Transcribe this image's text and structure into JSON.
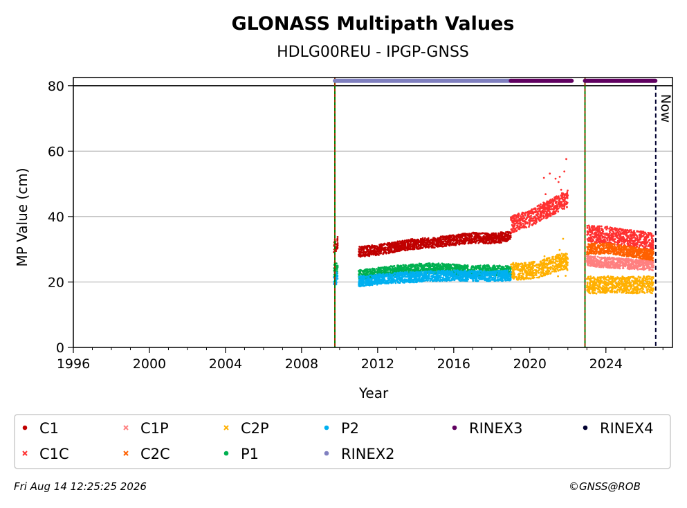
{
  "chart_data": {
    "type": "scatter",
    "title": "GLONASS Multipath Values",
    "subtitle": "HDLG00REU - IPGP-GNSS",
    "xlabel": "Year",
    "ylabel": "MP Value (cm)",
    "xlim": [
      1996,
      2027.5
    ],
    "ylim": [
      0,
      82.5
    ],
    "x_ticks": [
      1996,
      2000,
      2004,
      2008,
      2012,
      2016,
      2020,
      2024
    ],
    "y_ticks": [
      0,
      20,
      40,
      60,
      80
    ],
    "grid": "horizontal",
    "legend_position": "bottom",
    "now_label": "Now",
    "now_x": 2026.62,
    "receiver_change_lines": [
      2009.75,
      2022.9
    ],
    "series": [
      {
        "name": "C1",
        "color": "#c00000",
        "marker": "circle",
        "segments": [
          {
            "x": [
              2009.7,
              2009.75,
              2009.8,
              2009.85,
              2009.9
            ],
            "y": [
              30.5,
              32,
              31,
              30,
              32.5
            ]
          },
          {
            "x": [
              2011,
              2012,
              2013,
              2014,
              2015,
              2016,
              2017,
              2018,
              2019
            ],
            "y": [
              29.2,
              29.8,
              30.8,
              31.7,
              32.1,
              32.8,
              33.5,
              33.3,
              33.9
            ]
          }
        ]
      },
      {
        "name": "C1C",
        "color": "#ff3030",
        "marker": "x",
        "segments": [
          {
            "x": [
              2019,
              2019.5,
              2020,
              2020.5,
              2021,
              2021.5,
              2022
            ],
            "y": [
              37.5,
              38.5,
              39.5,
              41,
              42.5,
              44,
              45.5
            ]
          },
          {
            "x": [
              2023,
              2023.5,
              2024,
              2024.5,
              2025,
              2025.5,
              2026,
              2026.5
            ],
            "y": [
              35,
              34.5,
              34.5,
              34,
              33.5,
              33.2,
              32.8,
              32.3
            ]
          }
        ]
      },
      {
        "name": "C1P",
        "color": "#ff8080",
        "marker": "x",
        "segments": [
          {
            "x": [
              2023,
              2023.5,
              2024,
              2024.5,
              2025,
              2025.5,
              2026,
              2026.5
            ],
            "y": [
              26.5,
              26.2,
              26,
              25.8,
              25.6,
              25.4,
              25.2,
              25
            ]
          }
        ]
      },
      {
        "name": "C2C",
        "color": "#ff6000",
        "marker": "x",
        "segments": [
          {
            "x": [
              2023,
              2023.5,
              2024,
              2024.5,
              2025,
              2025.5,
              2026,
              2026.5
            ],
            "y": [
              30,
              30.2,
              30.3,
              30,
              29.5,
              29,
              28.6,
              28.2
            ]
          }
        ]
      },
      {
        "name": "C2P",
        "color": "#ffb000",
        "marker": "x",
        "segments": [
          {
            "x": [
              2019,
              2019.5,
              2020,
              2020.5,
              2021,
              2021.5,
              2022
            ],
            "y": [
              23.5,
              23.2,
              23.5,
              24,
              25,
              25.8,
              26.2
            ]
          },
          {
            "x": [
              2023,
              2023.5,
              2024,
              2024.5,
              2025,
              2025.5,
              2026,
              2026.5
            ],
            "y": [
              19.2,
              19,
              19.2,
              19.3,
              19.1,
              19,
              19.2,
              19.1
            ]
          }
        ]
      },
      {
        "name": "P1",
        "color": "#00b050",
        "marker": "circle",
        "segments": [
          {
            "x": [
              2009.7,
              2009.75,
              2009.8,
              2009.85,
              2009.9
            ],
            "y": [
              23,
              24.5,
              22.5,
              25,
              23.5
            ]
          },
          {
            "x": [
              2011,
              2012,
              2013,
              2014,
              2015,
              2016,
              2017,
              2018,
              2019
            ],
            "y": [
              22,
              22.8,
              23.5,
              24,
              24.2,
              23.8,
              23.4,
              23.6,
              23.2
            ]
          }
        ]
      },
      {
        "name": "P2",
        "color": "#00b0f0",
        "marker": "circle",
        "segments": [
          {
            "x": [
              2009.7,
              2009.75,
              2009.8,
              2009.85,
              2009.9
            ],
            "y": [
              20.5,
              21.5,
              20,
              22,
              21
            ]
          },
          {
            "x": [
              2011,
              2012,
              2013,
              2014,
              2015,
              2016,
              2017,
              2018,
              2019
            ],
            "y": [
              20.2,
              20.8,
              21.3,
              21.5,
              21.8,
              22,
              21.8,
              21.8,
              22
            ]
          }
        ]
      }
    ],
    "rinex_bars": [
      {
        "name": "RINEX2",
        "color": "#8080c0",
        "x": [
          2009.75,
          2019.0
        ],
        "y": 81.5
      },
      {
        "name": "RINEX3",
        "color": "#600060",
        "x": [
          2019.0,
          2022.2
        ],
        "y": 81.5
      },
      {
        "name": "RINEX3",
        "color": "#600060",
        "x": [
          2022.9,
          2026.6
        ],
        "y": 81.5
      }
    ],
    "legend": [
      {
        "name": "C1",
        "color": "#c00000",
        "marker": "circle"
      },
      {
        "name": "C1P",
        "color": "#ff8080",
        "marker": "x"
      },
      {
        "name": "C2P",
        "color": "#ffb000",
        "marker": "x"
      },
      {
        "name": "P2",
        "color": "#00b0f0",
        "marker": "circle"
      },
      {
        "name": "RINEX3",
        "color": "#600060",
        "marker": "circle"
      },
      {
        "name": "RINEX4",
        "color": "#000030",
        "marker": "circle"
      },
      {
        "name": "C1C",
        "color": "#ff3030",
        "marker": "x"
      },
      {
        "name": "C2C",
        "color": "#ff6000",
        "marker": "x"
      },
      {
        "name": "P1",
        "color": "#00b050",
        "marker": "circle"
      },
      {
        "name": "RINEX2",
        "color": "#8080c0",
        "marker": "circle"
      }
    ]
  },
  "footer": {
    "timestamp": "Fri Aug 14 12:25:25 2026",
    "copyright": "©GNSS@ROB"
  }
}
